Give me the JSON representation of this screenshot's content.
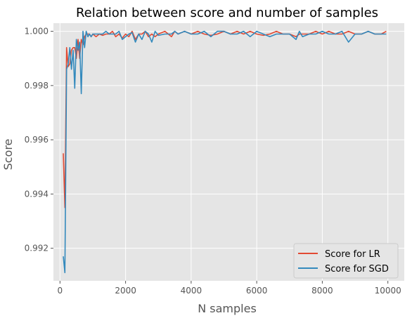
{
  "chart_data": {
    "type": "line",
    "title": "Relation between score and number of samples",
    "xlabel": "N samples",
    "ylabel": "Score",
    "xlim": [
      -200,
      10500
    ],
    "ylim": [
      0.9908,
      1.0003
    ],
    "xticks": [
      0,
      2000,
      4000,
      6000,
      8000,
      10000
    ],
    "xtick_labels": [
      "0",
      "2000",
      "4000",
      "6000",
      "8000",
      "10000"
    ],
    "yticks": [
      0.992,
      0.994,
      0.996,
      0.998,
      1.0
    ],
    "ytick_labels": [
      "0.992",
      "0.994",
      "0.996",
      "0.998",
      "1.000"
    ],
    "grid": true,
    "legend_position": "lower-right",
    "colors": {
      "lr": "#E24A33",
      "sgd": "#348ABD",
      "background": "#E5E5E5",
      "grid": "#FFFFFF"
    },
    "series": [
      {
        "name": "Score for LR",
        "color": "#E24A33",
        "x": [
          100,
          150,
          200,
          250,
          300,
          350,
          400,
          450,
          500,
          550,
          600,
          650,
          700,
          750,
          800,
          850,
          900,
          950,
          1000,
          1100,
          1200,
          1300,
          1400,
          1500,
          1600,
          1700,
          1800,
          1900,
          2000,
          2100,
          2200,
          2300,
          2400,
          2500,
          2600,
          2700,
          2800,
          2900,
          3000,
          3200,
          3400,
          3500,
          3600,
          3800,
          4000,
          4200,
          4400,
          4600,
          4800,
          5000,
          5200,
          5400,
          5600,
          5800,
          6000,
          6200,
          6400,
          6600,
          6800,
          7000,
          7200,
          7300,
          7400,
          7600,
          7800,
          8000,
          8200,
          8400,
          8600,
          8800,
          9000,
          9200,
          9400,
          9600,
          9800,
          9950
        ],
        "y": [
          0.9955,
          0.9935,
          0.9994,
          0.9987,
          0.9988,
          0.9993,
          0.9994,
          0.9994,
          0.999,
          0.9997,
          0.999,
          0.9997,
          0.9995,
          0.9998,
          0.9999,
          0.9999,
          0.9999,
          0.9998,
          0.9999,
          0.9998,
          0.9999,
          0.99985,
          0.9999,
          0.9999,
          1.0,
          0.9998,
          0.9999,
          0.99975,
          0.9999,
          0.9998,
          1.0,
          0.9997,
          0.9999,
          0.9999,
          1.0,
          0.9998,
          0.9999,
          0.9998,
          0.9999,
          1.0,
          0.9998,
          1.0,
          0.9999,
          1.0,
          0.9999,
          1.0,
          0.9999,
          0.99985,
          0.9999,
          1.0,
          0.9999,
          1.0,
          0.9999,
          1.0,
          0.9999,
          0.99985,
          0.9999,
          1.0,
          0.9999,
          0.9999,
          0.9998,
          0.9999,
          0.9999,
          0.9999,
          1.0,
          0.9999,
          1.0,
          0.9999,
          0.9999,
          1.0,
          0.9999,
          0.9999,
          1.0,
          0.9999,
          0.9999,
          1.0
        ]
      },
      {
        "name": "Score for SGD",
        "color": "#348ABD",
        "x": [
          100,
          150,
          200,
          250,
          300,
          350,
          400,
          450,
          500,
          550,
          600,
          650,
          700,
          750,
          800,
          850,
          900,
          950,
          1000,
          1100,
          1200,
          1300,
          1400,
          1500,
          1600,
          1700,
          1800,
          1900,
          2000,
          2100,
          2200,
          2300,
          2400,
          2500,
          2600,
          2700,
          2800,
          2900,
          3000,
          3200,
          3400,
          3500,
          3600,
          3800,
          4000,
          4200,
          4400,
          4600,
          4800,
          5000,
          5200,
          5400,
          5600,
          5800,
          6000,
          6200,
          6400,
          6600,
          6800,
          7000,
          7200,
          7300,
          7400,
          7600,
          7800,
          8000,
          8200,
          8400,
          8600,
          8800,
          9000,
          9200,
          9400,
          9600,
          9800,
          9950
        ],
        "y": [
          0.9917,
          0.9911,
          0.9986,
          0.9988,
          0.9994,
          0.9986,
          0.9993,
          0.9979,
          0.9997,
          0.9993,
          0.9996,
          0.9977,
          1.0,
          0.9994,
          1.0,
          0.9998,
          0.9999,
          0.9998,
          0.9999,
          0.9999,
          0.9999,
          0.9999,
          1.0,
          0.9999,
          0.9999,
          0.9999,
          1.0,
          0.9997,
          0.9998,
          0.9999,
          0.99995,
          0.9996,
          0.9999,
          0.9997,
          1.0,
          0.9999,
          0.9996,
          1.0,
          0.99985,
          0.9999,
          0.9999,
          1.0,
          0.9999,
          1.0,
          0.9999,
          0.9999,
          1.0,
          0.9998,
          1.0,
          1.0,
          0.9999,
          0.9999,
          1.0,
          0.9998,
          1.0,
          0.9999,
          0.9998,
          0.9999,
          0.9999,
          0.9999,
          0.9997,
          1.0,
          0.9998,
          0.9999,
          0.9999,
          1.0,
          0.9999,
          0.9999,
          1.0,
          0.9996,
          0.9999,
          0.9999,
          1.0,
          0.9999,
          0.9999,
          0.9999
        ]
      }
    ]
  }
}
